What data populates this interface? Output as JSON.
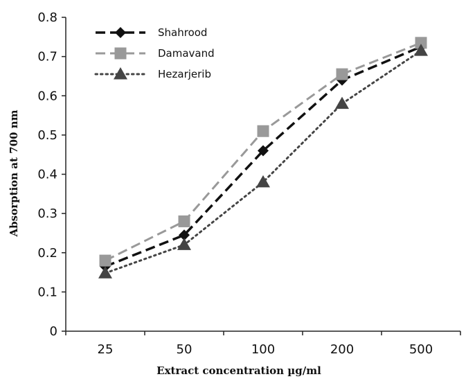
{
  "chart_data": {
    "type": "line",
    "title": "",
    "xlabel": "Extract concentration µg/ml",
    "ylabel": "Absorption at 700 nm",
    "categories": [
      "25",
      "50",
      "100",
      "200",
      "500"
    ],
    "ylim": [
      0,
      0.8
    ],
    "yticks": [
      0,
      0.1,
      0.2,
      0.3,
      0.4,
      0.5,
      0.6,
      0.7,
      0.8
    ],
    "ytick_labels": [
      "0",
      "0.1",
      "0.2",
      "0.3",
      "0.4",
      "0.5",
      "0.6",
      "0.7",
      "0.8"
    ],
    "grid": false,
    "legend_position": "top-left",
    "series": [
      {
        "name": "Shahrood",
        "values": [
          0.165,
          0.245,
          0.46,
          0.64,
          0.725
        ],
        "color": "#111111",
        "marker": "diamond",
        "dash": "dashed"
      },
      {
        "name": "Damavand",
        "values": [
          0.18,
          0.28,
          0.51,
          0.655,
          0.735
        ],
        "color": "#999999",
        "marker": "square",
        "dash": "dashed"
      },
      {
        "name": "Hezarjerib",
        "values": [
          0.148,
          0.22,
          0.38,
          0.58,
          0.715
        ],
        "color": "#444444",
        "marker": "triangle",
        "dash": "dotted"
      }
    ]
  }
}
